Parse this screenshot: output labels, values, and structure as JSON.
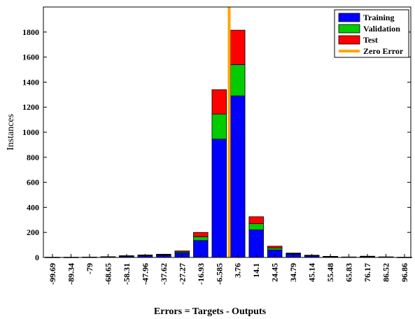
{
  "chart_data": {
    "type": "bar",
    "stacked": true,
    "title": "",
    "xlabel": "Errors = Targets - Outputs",
    "ylabel": "Instances",
    "ylim": [
      0,
      2000
    ],
    "yticks": [
      0,
      200,
      400,
      600,
      800,
      1000,
      1200,
      1400,
      1600,
      1800
    ],
    "categories": [
      "-99.69",
      "-89.34",
      "-79",
      "-68.65",
      "-58.31",
      "-47.96",
      "-37.62",
      "-27.27",
      "-16.93",
      "-6.585",
      "3.76",
      "14.1",
      "24.45",
      "34.79",
      "45.14",
      "55.48",
      "65.83",
      "76.17",
      "86.52",
      "96.86"
    ],
    "series": [
      {
        "name": "Training",
        "color": "#0000ff",
        "values": [
          2,
          2,
          3,
          4,
          10,
          14,
          18,
          36,
          135,
          945,
          1290,
          220,
          60,
          27,
          14,
          7,
          4,
          8,
          5,
          2
        ]
      },
      {
        "name": "Validation",
        "color": "#00cc00",
        "values": [
          0,
          0,
          0,
          1,
          2,
          3,
          3,
          8,
          30,
          200,
          250,
          50,
          15,
          4,
          2,
          1,
          0,
          1,
          0,
          0
        ]
      },
      {
        "name": "Test",
        "color": "#ff0000",
        "values": [
          0,
          0,
          0,
          1,
          2,
          3,
          5,
          8,
          35,
          195,
          275,
          55,
          15,
          4,
          2,
          1,
          0,
          1,
          0,
          0
        ]
      }
    ],
    "zero_error": {
      "name": "Zero Error",
      "x_between": [
        "-6.585",
        "3.76"
      ],
      "color": "#ffa500"
    },
    "legend": {
      "position": "top-right",
      "entries": [
        "Training",
        "Validation",
        "Test",
        "Zero Error"
      ]
    },
    "grid": false
  }
}
